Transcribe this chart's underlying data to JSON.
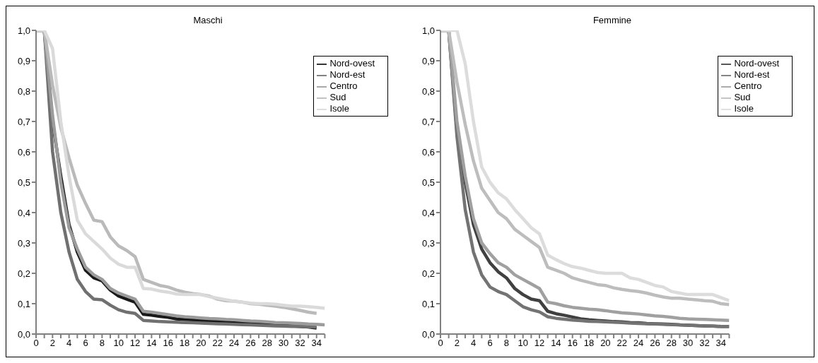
{
  "chart_data": [
    {
      "type": "line",
      "title": "Maschi",
      "x": [
        0,
        1,
        2,
        3,
        4,
        5,
        6,
        7,
        8,
        9,
        10,
        11,
        12,
        13,
        14,
        15,
        16,
        17,
        18,
        19,
        20,
        21,
        22,
        23,
        24,
        25,
        26,
        27,
        28,
        29,
        30,
        31,
        32,
        33,
        34,
        35
      ],
      "series": [
        {
          "name": "Nord-ovest",
          "color": "#1a1a1a",
          "values": [
            1,
            1,
            0.7,
            0.52,
            0.36,
            0.27,
            0.21,
            0.185,
            0.175,
            0.145,
            0.125,
            0.115,
            0.105,
            0.065,
            0.062,
            0.058,
            0.055,
            0.05,
            0.048,
            0.047,
            0.045,
            0.043,
            0.042,
            0.04,
            0.038,
            0.037,
            0.035,
            0.033,
            0.031,
            0.03,
            0.028,
            0.027,
            0.025,
            0.023,
            0.02,
            null
          ]
        },
        {
          "name": "Nord-est",
          "color": "#707070",
          "values": [
            1,
            1,
            0.6,
            0.4,
            0.27,
            0.18,
            0.14,
            0.115,
            0.113,
            0.095,
            0.08,
            0.072,
            0.068,
            0.045,
            0.043,
            0.041,
            0.04,
            0.039,
            0.038,
            0.037,
            0.036,
            0.035,
            0.034,
            0.033,
            0.032,
            0.031,
            0.03,
            0.029,
            0.028,
            0.027,
            0.026,
            0.025,
            0.025,
            0.024,
            0.023,
            null
          ]
        },
        {
          "name": "Centro",
          "color": "#9c9c9c",
          "values": [
            1,
            1,
            0.72,
            0.5,
            0.35,
            0.28,
            0.22,
            0.195,
            0.18,
            0.15,
            0.135,
            0.125,
            0.115,
            0.075,
            0.072,
            0.068,
            0.064,
            0.06,
            0.057,
            0.055,
            0.053,
            0.051,
            0.05,
            0.048,
            0.047,
            0.045,
            0.043,
            0.042,
            0.04,
            0.038,
            0.037,
            0.036,
            0.035,
            0.033,
            0.032,
            0.03
          ]
        },
        {
          "name": "Sud",
          "color": "#bababa",
          "values": [
            1,
            1,
            0.82,
            0.68,
            0.58,
            0.49,
            0.43,
            0.375,
            0.37,
            0.32,
            0.29,
            0.275,
            0.255,
            0.18,
            0.17,
            0.16,
            0.155,
            0.145,
            0.138,
            0.133,
            0.13,
            0.125,
            0.115,
            0.11,
            0.108,
            0.105,
            0.1,
            0.098,
            0.095,
            0.092,
            0.088,
            0.083,
            0.078,
            0.072,
            0.068,
            null
          ]
        },
        {
          "name": "Isole",
          "color": "#dadada",
          "values": [
            1,
            1,
            0.94,
            0.7,
            0.52,
            0.375,
            0.33,
            0.305,
            0.28,
            0.25,
            0.23,
            0.22,
            0.22,
            0.15,
            0.148,
            0.142,
            0.138,
            0.132,
            0.13,
            0.13,
            0.13,
            0.123,
            0.118,
            0.113,
            0.108,
            0.105,
            0.102,
            0.1,
            0.1,
            0.098,
            0.095,
            0.092,
            0.092,
            0.09,
            0.088,
            0.085
          ]
        }
      ],
      "xlim": [
        0,
        35
      ],
      "xticks": [
        0,
        {
          "value": 1,
          "label": null
        },
        2,
        {
          "value": 3,
          "label": null
        },
        4,
        {
          "value": 5,
          "label": null
        },
        6,
        {
          "value": 7,
          "label": null
        },
        8,
        {
          "value": 9,
          "label": null
        },
        10,
        {
          "value": 11,
          "label": null
        },
        12,
        {
          "value": 13,
          "label": null
        },
        14,
        {
          "value": 15,
          "label": null
        },
        16,
        {
          "value": 17,
          "label": null
        },
        18,
        {
          "value": 19,
          "label": null
        },
        20,
        {
          "value": 21,
          "label": null
        },
        22,
        {
          "value": 23,
          "label": null
        },
        24,
        {
          "value": 25,
          "label": null
        },
        26,
        {
          "value": 27,
          "label": null
        },
        28,
        {
          "value": 29,
          "label": null
        },
        30,
        {
          "value": 31,
          "label": null
        },
        32,
        {
          "value": 33,
          "label": null
        },
        34,
        {
          "value": 35,
          "label": null
        }
      ],
      "ylim": [
        0,
        1
      ],
      "yticks": [
        {
          "value": 0,
          "label": "0,0"
        },
        {
          "value": 0.1,
          "label": "0,1"
        },
        {
          "value": 0.2,
          "label": "0,2"
        },
        {
          "value": 0.3,
          "label": "0,3"
        },
        {
          "value": 0.4,
          "label": "0,4"
        },
        {
          "value": 0.5,
          "label": "0,5"
        },
        {
          "value": 0.6,
          "label": "0,6"
        },
        {
          "value": 0.7,
          "label": "0,7"
        },
        {
          "value": 0.8,
          "label": "0,8"
        },
        {
          "value": 0.9,
          "label": "0,9"
        },
        {
          "value": 1,
          "label": "1,0"
        }
      ],
      "grid": false,
      "legend": "top right",
      "marker": "none",
      "line_style": "solid"
    },
    {
      "type": "line",
      "title": "Femmine",
      "x": [
        0,
        1,
        2,
        3,
        4,
        5,
        6,
        7,
        8,
        9,
        10,
        11,
        12,
        13,
        14,
        15,
        16,
        17,
        18,
        19,
        20,
        21,
        22,
        23,
        24,
        25,
        26,
        27,
        28,
        29,
        30,
        31,
        32,
        33,
        34,
        35
      ],
      "series": [
        {
          "name": "Nord-ovest",
          "color": "#404040",
          "values": [
            1,
            1,
            0.67,
            0.5,
            0.36,
            0.28,
            0.235,
            0.205,
            0.185,
            0.15,
            0.13,
            0.115,
            0.11,
            0.075,
            0.067,
            0.062,
            0.056,
            0.05,
            0.047,
            0.045,
            0.043,
            0.041,
            0.04,
            0.038,
            0.037,
            0.035,
            0.034,
            0.033,
            0.032,
            0.03,
            0.029,
            0.028,
            0.027,
            0.026,
            0.025,
            0.025
          ]
        },
        {
          "name": "Nord-est",
          "color": "#737373",
          "values": [
            1,
            1,
            0.65,
            0.41,
            0.27,
            0.195,
            0.155,
            0.14,
            0.13,
            0.11,
            0.09,
            0.08,
            0.073,
            0.057,
            0.052,
            0.049,
            0.046,
            0.044,
            0.042,
            0.041,
            0.04,
            0.039,
            0.038,
            0.036,
            0.035,
            0.034,
            0.033,
            0.032,
            0.031,
            0.03,
            0.029,
            0.028,
            0.027,
            0.026,
            0.025,
            0.025
          ]
        },
        {
          "name": "Centro",
          "color": "#a0a0a0",
          "values": [
            1,
            1,
            0.7,
            0.52,
            0.38,
            0.3,
            0.265,
            0.235,
            0.22,
            0.195,
            0.18,
            0.165,
            0.15,
            0.105,
            0.1,
            0.093,
            0.088,
            0.085,
            0.082,
            0.08,
            0.077,
            0.073,
            0.07,
            0.068,
            0.066,
            0.063,
            0.06,
            0.058,
            0.055,
            0.052,
            0.05,
            0.049,
            0.048,
            0.047,
            0.046,
            0.045
          ]
        },
        {
          "name": "Sud",
          "color": "#bdbdbd",
          "values": [
            1,
            1,
            0.83,
            0.69,
            0.57,
            0.48,
            0.44,
            0.4,
            0.38,
            0.345,
            0.325,
            0.305,
            0.285,
            0.22,
            0.21,
            0.2,
            0.185,
            0.177,
            0.17,
            0.163,
            0.16,
            0.152,
            0.147,
            0.143,
            0.14,
            0.135,
            0.128,
            0.122,
            0.118,
            0.118,
            0.115,
            0.113,
            0.11,
            0.108,
            0.1,
            0.097
          ]
        },
        {
          "name": "Isole",
          "color": "#dcdcdc",
          "values": [
            1,
            1,
            1,
            0.89,
            0.7,
            0.55,
            0.5,
            0.465,
            0.445,
            0.41,
            0.38,
            0.35,
            0.33,
            0.26,
            0.245,
            0.232,
            0.222,
            0.217,
            0.21,
            0.203,
            0.2,
            0.2,
            0.2,
            0.185,
            0.18,
            0.17,
            0.16,
            0.155,
            0.14,
            0.135,
            0.13,
            0.13,
            0.13,
            0.13,
            0.12,
            0.11
          ]
        }
      ],
      "xlim": [
        0,
        35
      ],
      "xticks": [
        0,
        {
          "value": 1,
          "label": null
        },
        2,
        {
          "value": 3,
          "label": null
        },
        4,
        {
          "value": 5,
          "label": null
        },
        6,
        {
          "value": 7,
          "label": null
        },
        8,
        {
          "value": 9,
          "label": null
        },
        10,
        {
          "value": 11,
          "label": null
        },
        12,
        {
          "value": 13,
          "label": null
        },
        14,
        {
          "value": 15,
          "label": null
        },
        16,
        {
          "value": 17,
          "label": null
        },
        18,
        {
          "value": 19,
          "label": null
        },
        20,
        {
          "value": 21,
          "label": null
        },
        22,
        {
          "value": 23,
          "label": null
        },
        24,
        {
          "value": 25,
          "label": null
        },
        26,
        {
          "value": 27,
          "label": null
        },
        28,
        {
          "value": 29,
          "label": null
        },
        30,
        {
          "value": 31,
          "label": null
        },
        32,
        {
          "value": 33,
          "label": null
        },
        34,
        {
          "value": 35,
          "label": null
        }
      ],
      "ylim": [
        0,
        1
      ],
      "yticks": [
        {
          "value": 0,
          "label": "0,0"
        },
        {
          "value": 0.1,
          "label": "0,1"
        },
        {
          "value": 0.2,
          "label": "0,2"
        },
        {
          "value": 0.3,
          "label": "0,3"
        },
        {
          "value": 0.4,
          "label": "0,4"
        },
        {
          "value": 0.5,
          "label": "0,5"
        },
        {
          "value": 0.6,
          "label": "0,6"
        },
        {
          "value": 0.7,
          "label": "0,7"
        },
        {
          "value": 0.8,
          "label": "0,8"
        },
        {
          "value": 0.9,
          "label": "0,9"
        },
        {
          "value": 1,
          "label": "1,0"
        }
      ],
      "grid": false,
      "legend": "top right",
      "marker": "none",
      "line_style": "solid"
    }
  ]
}
